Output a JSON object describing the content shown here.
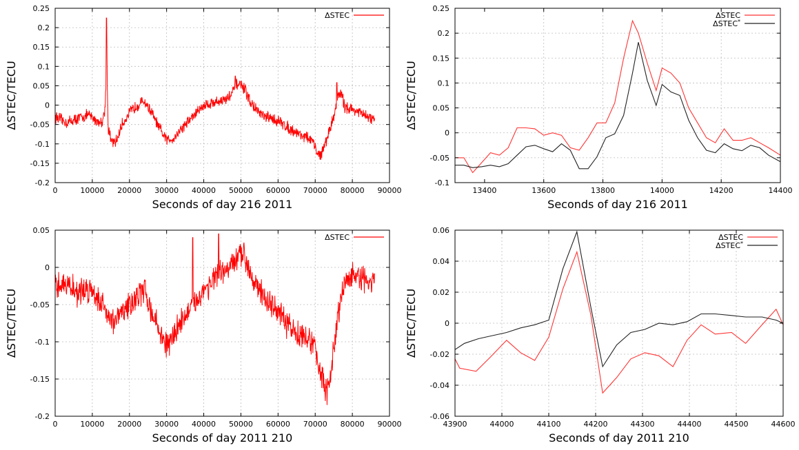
{
  "chart_data": [
    {
      "type": "line",
      "xlabel": "Seconds of day 216 2011",
      "ylabel": "ΔSTEC/TECU",
      "xlim": [
        0,
        90000
      ],
      "ylim": [
        -0.2,
        0.25
      ],
      "xticks": [
        0,
        10000,
        20000,
        30000,
        40000,
        50000,
        60000,
        70000,
        80000,
        90000
      ],
      "yticks": [
        -0.2,
        -0.15,
        -0.1,
        -0.05,
        0,
        0.05,
        0.1,
        0.15,
        0.2,
        0.25
      ],
      "grid": true,
      "legend_position": "top-right",
      "noise": 0.012,
      "series": [
        {
          "name": "ΔSTEC",
          "color": "#ff0000",
          "x": [
            0,
            3000,
            6000,
            9000,
            11000,
            12500,
            13300,
            13700,
            13900,
            14000,
            14300,
            15000,
            16000,
            17000,
            18000,
            20000,
            22000,
            24000,
            26000,
            28000,
            30000,
            32000,
            34000,
            36000,
            38000,
            40000,
            42000,
            44000,
            46000,
            48000,
            49000,
            50000,
            51000,
            53000,
            56000,
            60000,
            63000,
            66000,
            69000,
            71000,
            72000,
            73000,
            74000,
            75000,
            76000,
            77000,
            78000,
            80000,
            82000,
            84000,
            86000
          ],
          "y": [
            -0.03,
            -0.045,
            -0.035,
            -0.025,
            -0.04,
            -0.045,
            -0.02,
            0.05,
            0.22,
            0.05,
            -0.06,
            -0.09,
            -0.1,
            -0.08,
            -0.05,
            -0.02,
            0.0,
            0.01,
            -0.02,
            -0.06,
            -0.09,
            -0.085,
            -0.06,
            -0.04,
            -0.02,
            0.0,
            0.005,
            0.01,
            0.015,
            0.035,
            0.055,
            0.05,
            0.04,
            0.0,
            -0.03,
            -0.04,
            -0.06,
            -0.075,
            -0.09,
            -0.13,
            -0.12,
            -0.09,
            -0.06,
            -0.03,
            0.02,
            0.03,
            -0.005,
            -0.01,
            -0.02,
            -0.03,
            -0.04
          ],
          "spikes": [
            [
              13800,
              0.225
            ],
            [
              75800,
              0.058
            ],
            [
              48500,
              0.075
            ]
          ]
        }
      ]
    },
    {
      "type": "line",
      "xlabel": "Seconds of day 216 2011",
      "ylabel": "ΔSTEC/TECU",
      "xlim": [
        13300,
        14400
      ],
      "ylim": [
        -0.1,
        0.25
      ],
      "xticks": [
        13400,
        13600,
        13800,
        14000,
        14200,
        14400
      ],
      "yticks": [
        -0.1,
        -0.05,
        0,
        0.05,
        0.1,
        0.15,
        0.2,
        0.25
      ],
      "grid": true,
      "legend_position": "top-right",
      "noise": 0,
      "series": [
        {
          "name": "ΔSTEC",
          "color": "#ff3333",
          "x": [
            13300,
            13330,
            13360,
            13390,
            13420,
            13450,
            13480,
            13510,
            13540,
            13570,
            13600,
            13630,
            13660,
            13690,
            13720,
            13750,
            13780,
            13810,
            13840,
            13870,
            13900,
            13920,
            13950,
            13980,
            14000,
            14030,
            14060,
            14090,
            14120,
            14150,
            14180,
            14210,
            14240,
            14270,
            14300,
            14330,
            14360,
            14400
          ],
          "y": [
            -0.05,
            -0.05,
            -0.08,
            -0.06,
            -0.04,
            -0.045,
            -0.03,
            0.01,
            0.01,
            0.008,
            -0.005,
            0.0,
            -0.005,
            -0.03,
            -0.035,
            -0.01,
            0.02,
            0.02,
            0.06,
            0.15,
            0.225,
            0.2,
            0.14,
            0.085,
            0.13,
            0.12,
            0.1,
            0.05,
            0.02,
            -0.01,
            -0.02,
            0.008,
            -0.015,
            -0.015,
            -0.01,
            -0.02,
            -0.03,
            -0.045
          ]
        },
        {
          "name": "ΔSTEC*",
          "color": "#222222",
          "x": [
            13300,
            13330,
            13360,
            13390,
            13420,
            13450,
            13480,
            13510,
            13540,
            13570,
            13600,
            13630,
            13660,
            13690,
            13720,
            13750,
            13780,
            13810,
            13840,
            13870,
            13900,
            13920,
            13950,
            13980,
            14000,
            14030,
            14060,
            14090,
            14120,
            14150,
            14180,
            14210,
            14240,
            14270,
            14300,
            14330,
            14360,
            14400
          ],
          "y": [
            -0.065,
            -0.065,
            -0.07,
            -0.068,
            -0.065,
            -0.068,
            -0.062,
            -0.045,
            -0.028,
            -0.025,
            -0.032,
            -0.038,
            -0.022,
            -0.035,
            -0.072,
            -0.072,
            -0.048,
            -0.01,
            -0.002,
            0.035,
            0.12,
            0.182,
            0.105,
            0.055,
            0.097,
            0.082,
            0.075,
            0.025,
            -0.01,
            -0.035,
            -0.04,
            -0.022,
            -0.032,
            -0.036,
            -0.025,
            -0.03,
            -0.045,
            -0.058
          ]
        }
      ]
    },
    {
      "type": "line",
      "xlabel": "Seconds of day 2011 210",
      "ylabel": "ΔSTEC/TECU",
      "xlim": [
        0,
        90000
      ],
      "ylim": [
        -0.2,
        0.05
      ],
      "xticks": [
        0,
        10000,
        20000,
        30000,
        40000,
        50000,
        60000,
        70000,
        80000,
        90000
      ],
      "yticks": [
        -0.2,
        -0.15,
        -0.1,
        -0.05,
        0,
        0.05
      ],
      "grid": true,
      "legend_position": "top-right",
      "noise": 0.014,
      "series": [
        {
          "name": "ΔSTEC",
          "color": "#ff0000",
          "x": [
            0,
            2000,
            4000,
            6000,
            8000,
            10000,
            12000,
            14000,
            16000,
            18000,
            20000,
            22000,
            24000,
            26000,
            28000,
            30000,
            31000,
            32000,
            34000,
            36000,
            38000,
            40000,
            42000,
            44000,
            46000,
            48000,
            50000,
            51000,
            52000,
            54000,
            56000,
            58000,
            60000,
            62000,
            64000,
            66000,
            68000,
            70000,
            71000,
            72000,
            73000,
            74000,
            75000,
            76000,
            77000,
            78000,
            80000,
            82000,
            84000,
            86000
          ],
          "y": [
            -0.03,
            -0.02,
            -0.025,
            -0.035,
            -0.03,
            -0.03,
            -0.045,
            -0.06,
            -0.075,
            -0.06,
            -0.05,
            -0.04,
            -0.03,
            -0.06,
            -0.085,
            -0.105,
            -0.1,
            -0.09,
            -0.07,
            -0.06,
            -0.045,
            -0.03,
            -0.02,
            -0.01,
            -0.005,
            0.005,
            0.015,
            0.02,
            0.0,
            -0.02,
            -0.04,
            -0.05,
            -0.06,
            -0.075,
            -0.085,
            -0.09,
            -0.095,
            -0.11,
            -0.13,
            -0.15,
            -0.17,
            -0.15,
            -0.11,
            -0.07,
            -0.04,
            -0.02,
            -0.01,
            -0.015,
            -0.02,
            -0.02
          ],
          "spikes": [
            [
              44000,
              0.045
            ],
            [
              73200,
              -0.185
            ],
            [
              37000,
              0.04
            ]
          ]
        }
      ]
    },
    {
      "type": "line",
      "xlabel": "Seconds of day 2011 210",
      "ylabel": "ΔSTEC/TECU",
      "xlim": [
        43900,
        44600
      ],
      "ylim": [
        -0.06,
        0.06
      ],
      "xticks": [
        43900,
        44000,
        44100,
        44200,
        44300,
        44400,
        44500,
        44600
      ],
      "yticks": [
        -0.06,
        -0.04,
        -0.02,
        0,
        0.02,
        0.04,
        0.06
      ],
      "grid": true,
      "legend_position": "top-right",
      "noise": 0,
      "series": [
        {
          "name": "ΔSTEC",
          "color": "#ff3333",
          "x": [
            43900,
            43910,
            43945,
            43975,
            44010,
            44040,
            44070,
            44100,
            44130,
            44160,
            44190,
            44215,
            44245,
            44275,
            44305,
            44335,
            44365,
            44395,
            44425,
            44455,
            44490,
            44520,
            44555,
            44585,
            44600
          ],
          "y": [
            -0.023,
            -0.029,
            -0.031,
            -0.022,
            -0.011,
            -0.019,
            -0.024,
            -0.009,
            0.022,
            0.046,
            0.005,
            -0.045,
            -0.035,
            -0.023,
            -0.019,
            -0.021,
            -0.028,
            -0.011,
            -0.001,
            -0.007,
            -0.006,
            -0.013,
            -0.001,
            0.009,
            -0.001
          ]
        },
        {
          "name": "ΔSTEC*",
          "color": "#222222",
          "x": [
            43900,
            43920,
            43950,
            43980,
            44010,
            44040,
            44070,
            44100,
            44130,
            44160,
            44190,
            44215,
            44245,
            44275,
            44305,
            44335,
            44365,
            44395,
            44425,
            44455,
            44490,
            44520,
            44555,
            44585,
            44600
          ],
          "y": [
            -0.017,
            -0.013,
            -0.01,
            -0.008,
            -0.006,
            -0.003,
            -0.001,
            0.002,
            0.035,
            0.059,
            0.01,
            -0.028,
            -0.014,
            -0.006,
            -0.004,
            0.0,
            -0.001,
            0.001,
            0.006,
            0.006,
            0.005,
            0.004,
            0.004,
            0.002,
            0.0
          ]
        }
      ]
    }
  ]
}
